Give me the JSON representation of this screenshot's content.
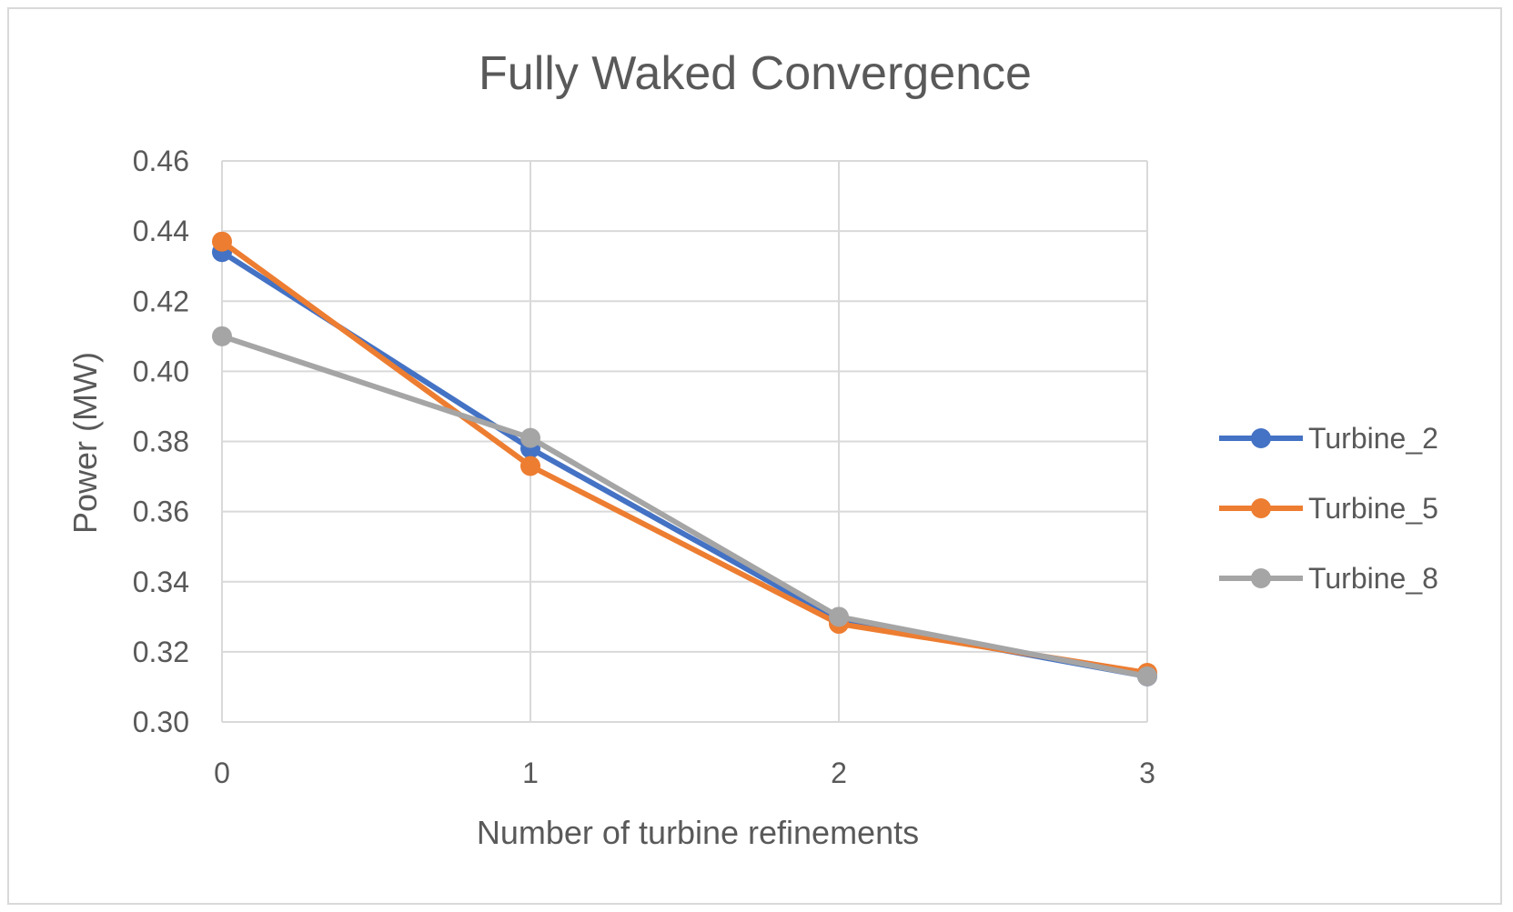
{
  "chart_data": {
    "type": "line",
    "title": "Fully Waked Convergence",
    "xlabel": "Number of turbine refinements",
    "ylabel": "Power (MW)",
    "x": [
      0,
      1,
      2,
      3
    ],
    "x_tick_labels": [
      "0",
      "1",
      "2",
      "3"
    ],
    "ylim": [
      0.3,
      0.46
    ],
    "y_ticks": [
      0.3,
      0.32,
      0.34,
      0.36,
      0.38,
      0.4,
      0.42,
      0.44,
      0.46
    ],
    "y_tick_labels": [
      "0.30",
      "0.32",
      "0.34",
      "0.36",
      "0.38",
      "0.40",
      "0.42",
      "0.44",
      "0.46"
    ],
    "grid": true,
    "legend_position": "right",
    "series": [
      {
        "name": "Turbine_2",
        "color": "#4472c4",
        "values": [
          0.434,
          0.378,
          0.329,
          0.313
        ]
      },
      {
        "name": "Turbine_5",
        "color": "#ed7d31",
        "values": [
          0.437,
          0.373,
          0.328,
          0.314
        ]
      },
      {
        "name": "Turbine_8",
        "color": "#a5a5a5",
        "values": [
          0.41,
          0.381,
          0.33,
          0.313
        ]
      }
    ]
  }
}
